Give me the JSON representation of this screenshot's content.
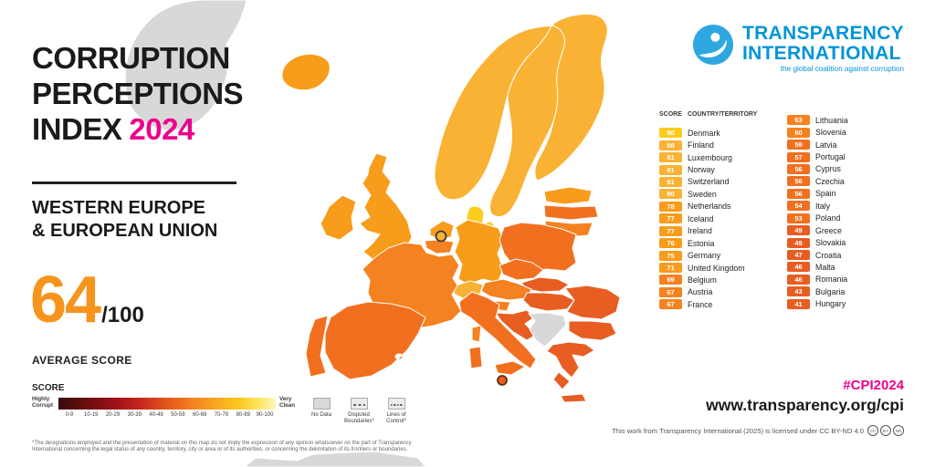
{
  "title": {
    "line1": "CORRUPTION",
    "line2": "PERCEPTIONS",
    "line3": "INDEX",
    "year": "2024"
  },
  "region": {
    "line1": "WESTERN EUROPE",
    "line2": "& EUROPEAN UNION"
  },
  "average": {
    "score": "64",
    "denominator": "/100",
    "label": "AVERAGE SCORE"
  },
  "logo": {
    "line1": "TRANSPARENCY",
    "line2": "INTERNATIONAL",
    "tagline": "the global coalition against corruption"
  },
  "legend": {
    "title": "SCORE",
    "low_label": "Highly Corrupt",
    "high_label": "Very Clean",
    "ticks": [
      "0-9",
      "10-19",
      "20-29",
      "30-39",
      "40-49",
      "50-59",
      "60-69",
      "70-79",
      "80-89",
      "90-100"
    ],
    "no_data": "No Data",
    "disputed": "Disputed Boundaries*",
    "control": "Lines of Control*"
  },
  "footnote": "*The designations employed and the presentation of material on this map do not imply the expression of any opinion whatsoever on the part of Transparency International concerning the legal status of any country, territory, city or area or of its authorities, or concerning the delimitation of its frontiers or boundaries.",
  "ranking": {
    "header_score": "SCORE",
    "header_country": "COUNTRY/TERRITORY",
    "columns": [
      [
        {
          "score": 90,
          "name": "Denmark"
        },
        {
          "score": 88,
          "name": "Finland"
        },
        {
          "score": 81,
          "name": "Luxembourg"
        },
        {
          "score": 81,
          "name": "Norway"
        },
        {
          "score": 81,
          "name": "Switzerland"
        },
        {
          "score": 80,
          "name": "Sweden"
        },
        {
          "score": 78,
          "name": "Netherlands"
        },
        {
          "score": 77,
          "name": "Iceland"
        },
        {
          "score": 77,
          "name": "Ireland"
        },
        {
          "score": 76,
          "name": "Estonia"
        },
        {
          "score": 75,
          "name": "Germany"
        },
        {
          "score": 71,
          "name": "United Kingdom"
        },
        {
          "score": 69,
          "name": "Belgium"
        },
        {
          "score": 67,
          "name": "Austria"
        },
        {
          "score": 67,
          "name": "France"
        }
      ],
      [
        {
          "score": 63,
          "name": "Lithuania"
        },
        {
          "score": 60,
          "name": "Slovenia"
        },
        {
          "score": 59,
          "name": "Latvia"
        },
        {
          "score": 57,
          "name": "Portugal"
        },
        {
          "score": 56,
          "name": "Cyprus"
        },
        {
          "score": 56,
          "name": "Czechia"
        },
        {
          "score": 56,
          "name": "Spain"
        },
        {
          "score": 54,
          "name": "Italy"
        },
        {
          "score": 53,
          "name": "Poland"
        },
        {
          "score": 49,
          "name": "Greece"
        },
        {
          "score": 49,
          "name": "Slovakia"
        },
        {
          "score": 47,
          "name": "Croatia"
        },
        {
          "score": 46,
          "name": "Malta"
        },
        {
          "score": 46,
          "name": "Romania"
        },
        {
          "score": 43,
          "name": "Bulgaria"
        },
        {
          "score": 41,
          "name": "Hungary"
        }
      ]
    ]
  },
  "score_colors": {
    "90": "#FACD1E",
    "80": "#F9B233",
    "70": "#F89C1C",
    "60": "#F58220",
    "50": "#F1701F",
    "40": "#E85D22"
  },
  "colors": {
    "accent_pink": "#EC008C",
    "score_orange": "#F7941D",
    "brand_blue": "#0095D8",
    "no_data": "#D8D8D8"
  },
  "footer": {
    "hashtag": "#CPI2024",
    "website": "www.transparency.org/cpi",
    "license": "This work from Transparency International (2025) is licensed under CC BY-ND 4.0",
    "cc_icons": [
      "cc",
      "by",
      "nd"
    ]
  }
}
